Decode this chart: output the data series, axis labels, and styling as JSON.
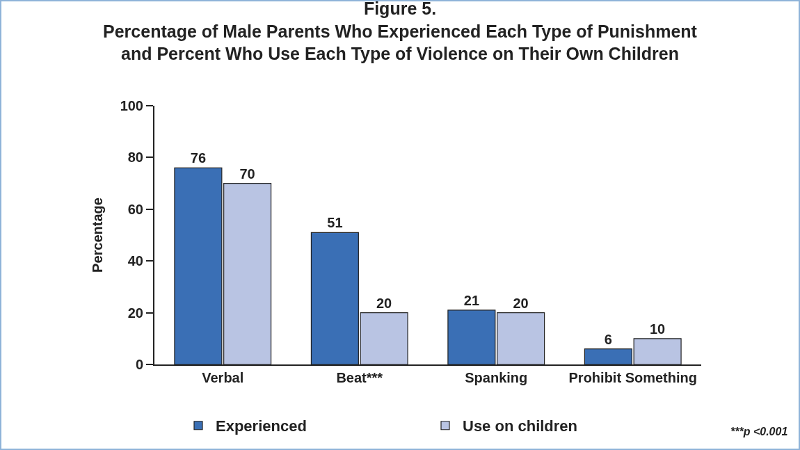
{
  "chart_data": {
    "type": "bar",
    "title": "Figure 5.",
    "subtitle": "Percentage of Male Parents Who Experienced Each Type of Punishment\nand Percent Who Use Each Type of Violence on Their Own Children",
    "ylabel": "Percentage",
    "categories": [
      "Verbal",
      "Beat***",
      "Spanking",
      "Prohibit Something"
    ],
    "series": [
      {
        "name": "Experienced",
        "color": "#3a6fb5",
        "values": [
          76,
          51,
          21,
          6
        ]
      },
      {
        "name": "Use on children",
        "color": "#b9c4e3",
        "values": [
          70,
          20,
          20,
          10
        ]
      }
    ],
    "ylim": [
      0,
      100
    ],
    "yticks": [
      0,
      20,
      40,
      60,
      80,
      100
    ],
    "grid": false,
    "legend": "bottom",
    "data_labels": true,
    "annotations": [
      "***p <0.001"
    ]
  }
}
